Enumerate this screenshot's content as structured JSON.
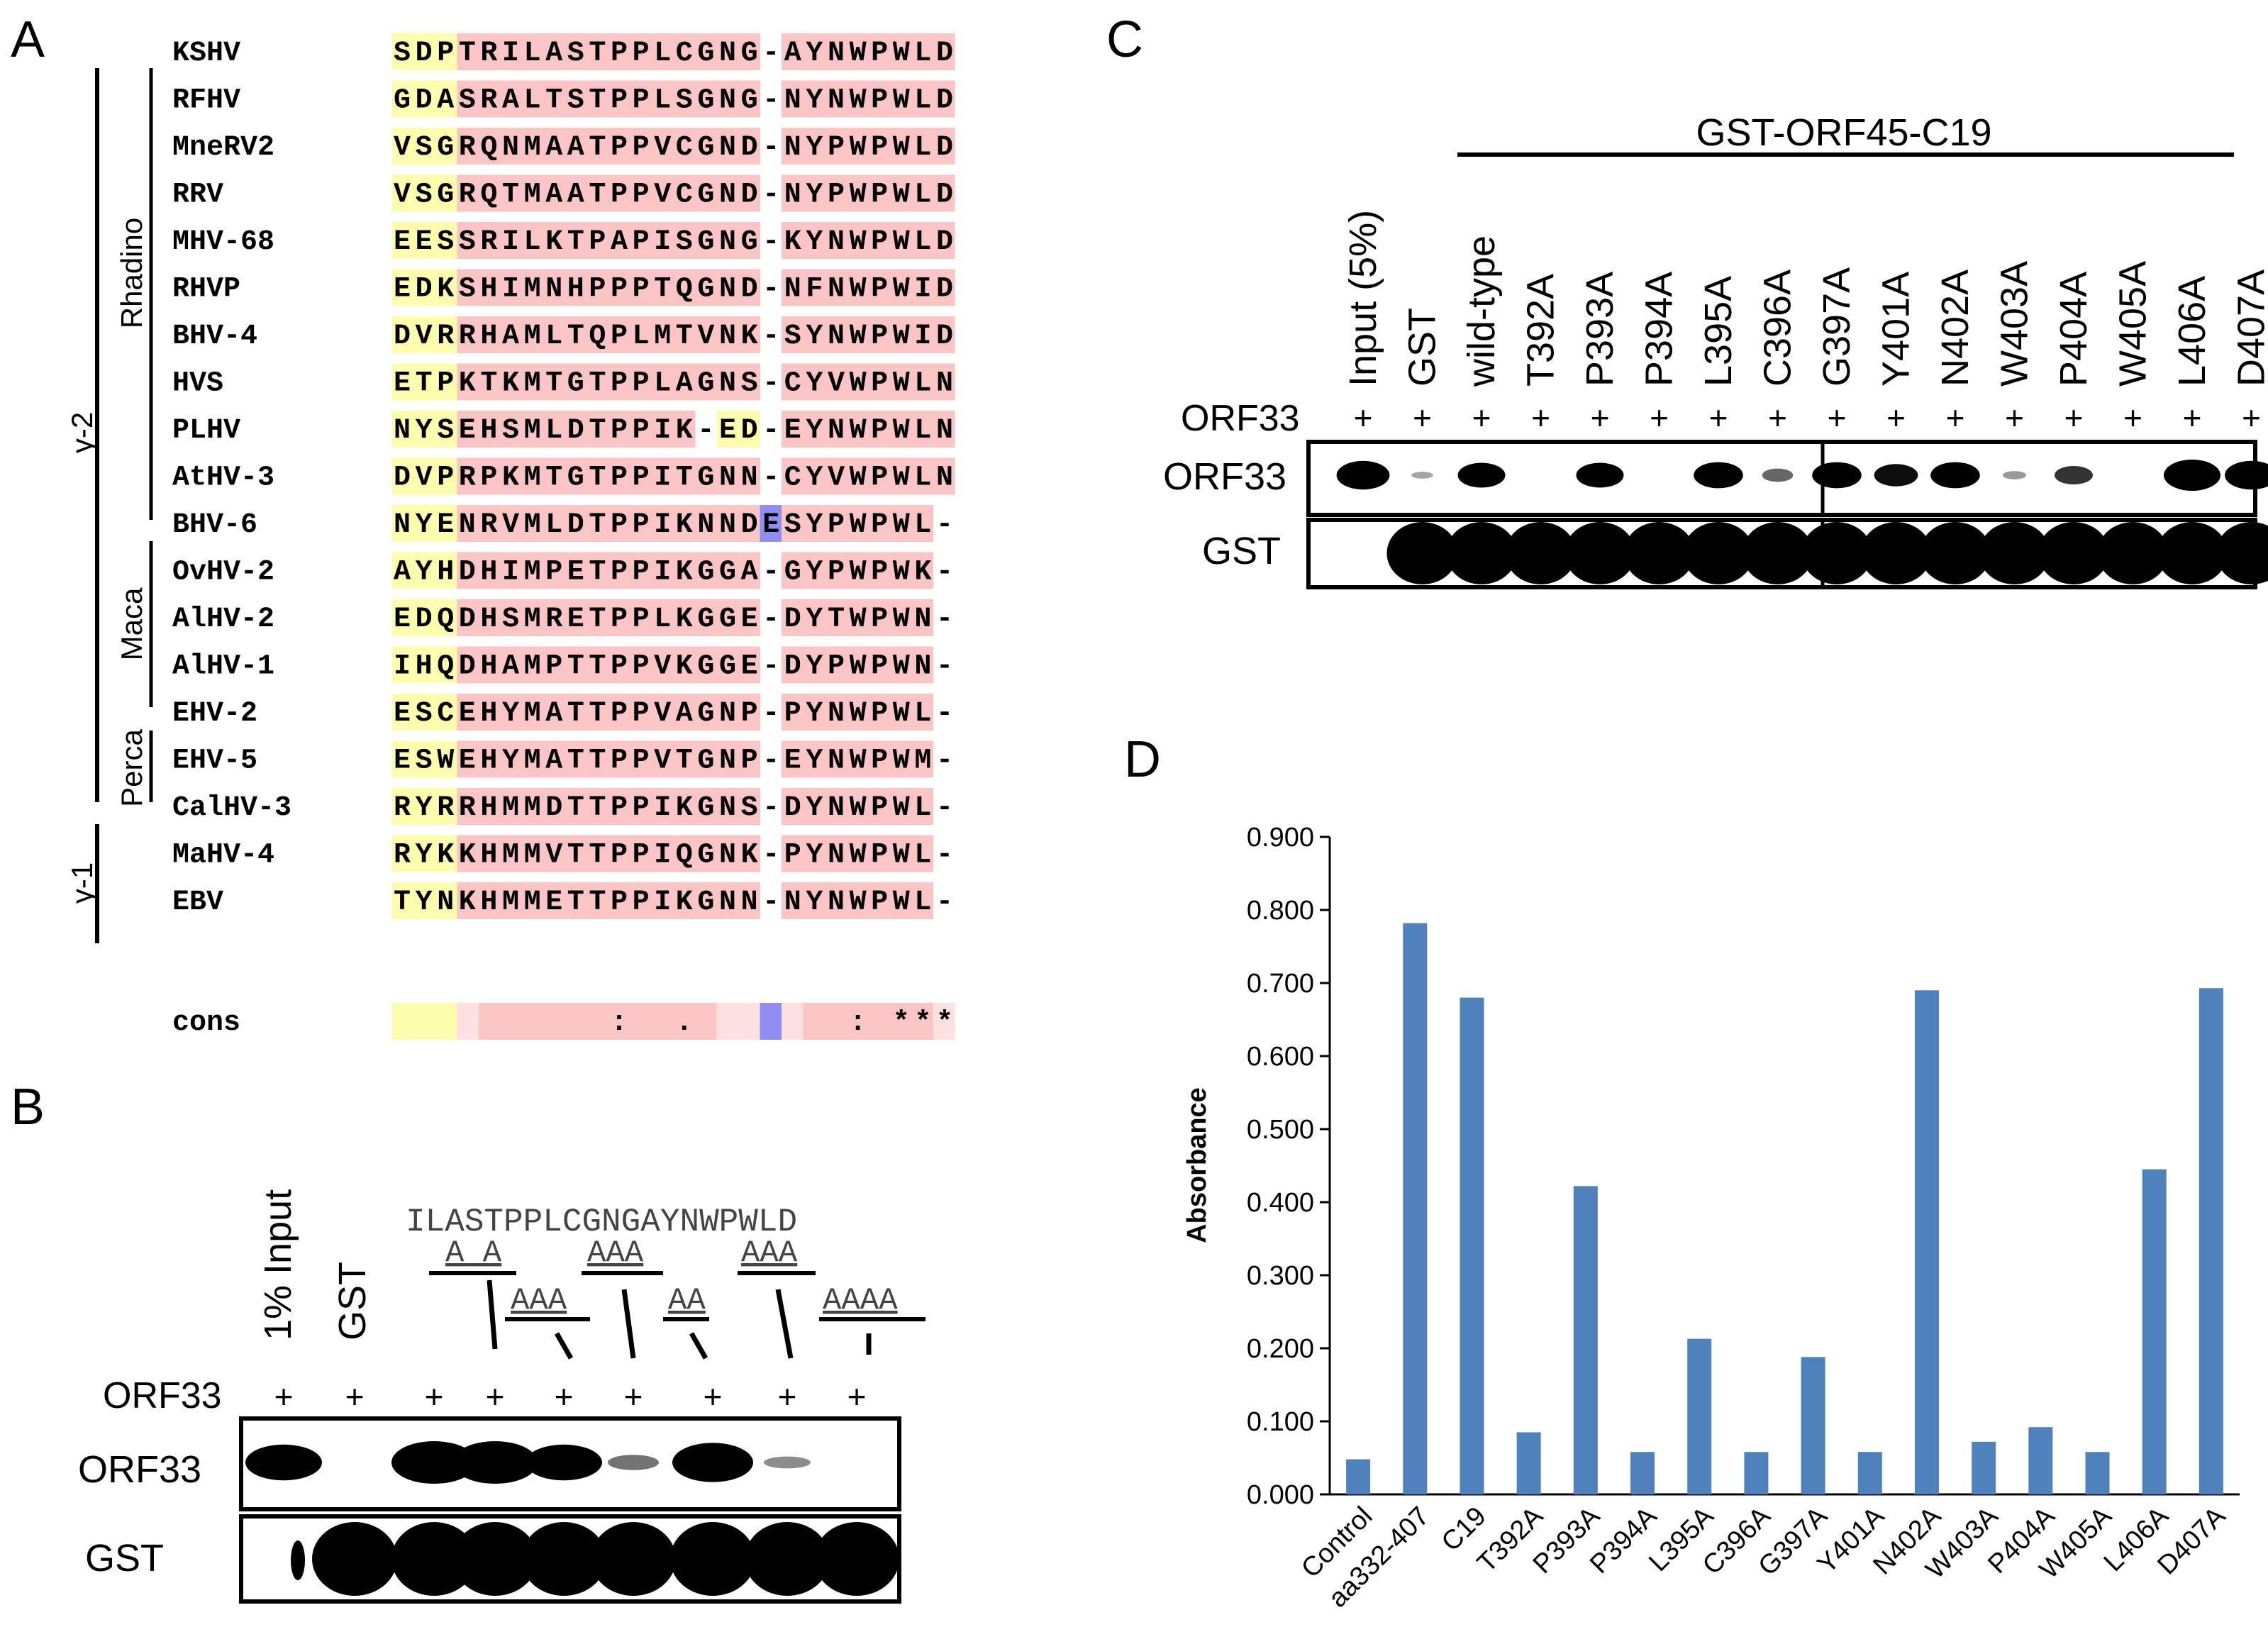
{
  "panels": {
    "a": "A",
    "b": "B",
    "c": "C",
    "d": "D"
  },
  "colors": {
    "yellow": "#fdfdae",
    "pink": "#fcc5c5",
    "pinkLight": "#fde0e0",
    "blue": "#8f8ff3",
    "bar": "#4f81bd",
    "band": "#000000"
  },
  "alignment": {
    "groups": {
      "gamma2": "γ-2",
      "gamma1": "γ-1",
      "rhadino": "Rhadino",
      "maca": "Maca",
      "perca": "Perca"
    },
    "rows": [
      {
        "name": "KSHV",
        "seq": "SDPTRILASTPPLCGNG-AYNWPWLD"
      },
      {
        "name": "RFHV",
        "seq": "GDASRALTSTPPLSGNG-NYNWPWLD"
      },
      {
        "name": "MneRV2",
        "seq": "VSGRQNMAATPPVCGND-NYPWPWLD"
      },
      {
        "name": "RRV",
        "seq": "VSGRQTMAATPPVCGND-NYPWPWLD"
      },
      {
        "name": "MHV-68",
        "seq": "EESSRILKTPAPISGNG-KYNWPWLD"
      },
      {
        "name": "RHVP",
        "seq": "EDKSHIMNHPPPTQGND-NFNWPWID"
      },
      {
        "name": "BHV-4",
        "seq": "DVRRHAMLTQPLMTVNK-SYNWPWID"
      },
      {
        "name": "HVS",
        "seq": "ETPKTKMTGTPPLAGNS-CYVWPWLN"
      },
      {
        "name": "PLHV",
        "seq": "NYSEHSMLDTPPIK-ED-EYNWPWLN"
      },
      {
        "name": "AtHV-3",
        "seq": "DVPRPKMTGTPPITGNN-CYVWPWLN"
      },
      {
        "name": "BHV-6",
        "seq": "NYENRVMLDTPPIKNNDESYPWPWL-"
      },
      {
        "name": "OvHV-2",
        "seq": "AYHDHIMPETPPIKGGA-GYPWPWK-"
      },
      {
        "name": "AlHV-2",
        "seq": "EDQDHSMRETPPLKGGE-DYTWPWN-"
      },
      {
        "name": "AlHV-1",
        "seq": "IHQDHAMPTTPPVKGGE-DYPWPWN-"
      },
      {
        "name": "EHV-2",
        "seq": "ESCEHYMATTPPVAGNP-PYNWPWL-"
      },
      {
        "name": "EHV-5",
        "seq": "ESWEHYMATTPPVTGNP-EYNWPWM-"
      },
      {
        "name": "CalHV-3",
        "seq": "RYRRHMMDTTPPIKGNS-DYNWPWL-"
      },
      {
        "name": "MaHV-4",
        "seq": "RYKKHMMVTTPPIQGNK-PYNWPWL-"
      },
      {
        "name": "EBV",
        "seq": "TYNKHMMETTPPIKGNN-NYNWPWL-"
      }
    ],
    "cons_label": "cons",
    "cons": "          :  .       : ***"
  },
  "panel_b": {
    "lane_labels": [
      "1% Input",
      "GST"
    ],
    "sequence": "ILASTPPLCGNGAYNWPWLD",
    "mutations": [
      "A A",
      "AAA",
      "AAA",
      "AA",
      "AAA",
      "AAAA"
    ],
    "row_label": "ORF33",
    "plus": [
      "+",
      "+",
      "+",
      "+",
      "+",
      "+",
      "+",
      "+",
      "+"
    ],
    "blot_labels": [
      "ORF33",
      "GST"
    ],
    "orf33_bands": [
      0.8,
      0,
      1.0,
      1.0,
      0.8,
      0.2,
      0.9,
      0.1,
      0
    ],
    "gst_bands": [
      0.1,
      1,
      1,
      1,
      1,
      1,
      1,
      1,
      1
    ]
  },
  "panel_c": {
    "title": "GST-ORF45-C19",
    "lanes": [
      "Input (5%)",
      "GST",
      "wild-type",
      "T392A",
      "P393A",
      "P394A",
      "L395A",
      "C396A",
      "G397A",
      "Y401A",
      "N402A",
      "W403A",
      "P404A",
      "W405A",
      "L406A",
      "D407A"
    ],
    "row_label": "ORF33",
    "plus": "+",
    "blot_labels": [
      "ORF33",
      "GST"
    ],
    "orf33_bands": [
      0.9,
      0.05,
      0.75,
      0,
      0.75,
      0,
      0.8,
      0.3,
      0.8,
      0.65,
      0.8,
      0.1,
      0.5,
      0,
      1.0,
      0.9
    ],
    "gst_bands": [
      0,
      1,
      1,
      1,
      1,
      1,
      1,
      1,
      1,
      1,
      1,
      1,
      1,
      1,
      1,
      1
    ]
  },
  "chart_data": {
    "type": "bar",
    "title": "",
    "xlabel": "",
    "ylabel": "Absorbance",
    "ylim": [
      0,
      0.9
    ],
    "yticks": [
      "0.000",
      "0.100",
      "0.200",
      "0.300",
      "0.400",
      "0.500",
      "0.600",
      "0.700",
      "0.800",
      "0.900"
    ],
    "categories": [
      "Control",
      "aa332-407",
      "C19",
      "T392A",
      "P393A",
      "P394A",
      "L395A",
      "C396A",
      "G397A",
      "Y401A",
      "N402A",
      "W403A",
      "P404A",
      "W405A",
      "L406A",
      "D407A"
    ],
    "values": [
      0.048,
      0.782,
      0.68,
      0.085,
      0.422,
      0.058,
      0.213,
      0.058,
      0.188,
      0.058,
      0.69,
      0.072,
      0.092,
      0.058,
      0.445,
      0.693
    ]
  }
}
